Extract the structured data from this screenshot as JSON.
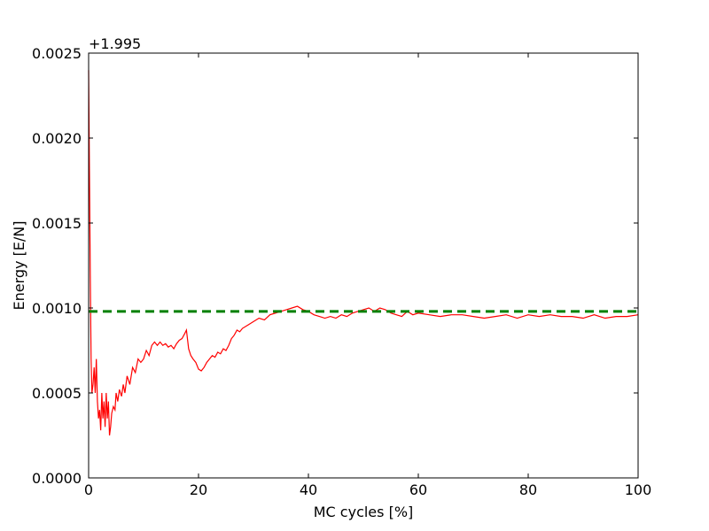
{
  "chart_data": {
    "type": "line",
    "title": "",
    "xlabel": "MC cycles [%]",
    "ylabel": "Energy [E/N]",
    "y_offset_text": "+1.995",
    "xlim": [
      0,
      100
    ],
    "ylim": [
      0,
      0.0025
    ],
    "grid": false,
    "x_ticks": [
      0,
      20,
      40,
      60,
      80,
      100
    ],
    "x_tick_labels": [
      "0",
      "20",
      "40",
      "60",
      "80",
      "100"
    ],
    "y_ticks": [
      0,
      0.0005,
      0.001,
      0.0015,
      0.002,
      0.0025
    ],
    "y_tick_labels": [
      "0.0000",
      "0.0005",
      "0.0010",
      "0.0015",
      "0.0020",
      "0.0025"
    ],
    "series": [
      {
        "color": "#ff0000",
        "style": "solid",
        "x": [
          0.0,
          0.15,
          0.3,
          0.45,
          0.6,
          0.8,
          1.0,
          1.2,
          1.4,
          1.6,
          1.8,
          2.0,
          2.2,
          2.4,
          2.6,
          2.8,
          3.0,
          3.2,
          3.4,
          3.6,
          3.8,
          4.0,
          4.2,
          4.5,
          4.8,
          5.0,
          5.3,
          5.6,
          6.0,
          6.3,
          6.6,
          7.0,
          7.5,
          8.0,
          8.5,
          9.0,
          9.5,
          10.0,
          10.5,
          11.0,
          11.5,
          12.0,
          12.5,
          13.0,
          13.5,
          14.0,
          14.5,
          15.0,
          15.5,
          16.0,
          16.5,
          17.0,
          17.5,
          17.8,
          18.2,
          18.6,
          19.0,
          19.5,
          20.0,
          20.5,
          21.0,
          21.5,
          22.0,
          22.5,
          23.0,
          23.5,
          24.0,
          24.5,
          25.0,
          25.5,
          26.0,
          26.5,
          27.0,
          27.5,
          28.0,
          29.0,
          30.0,
          31.0,
          32.0,
          33.0,
          34.0,
          35.0,
          36.0,
          37.0,
          38.0,
          39.0,
          40.0,
          41.0,
          42.0,
          43.0,
          44.0,
          45.0,
          46.0,
          47.0,
          48.0,
          49.0,
          50.0,
          51.0,
          52.0,
          53.0,
          54.0,
          55.0,
          56.0,
          57.0,
          58.0,
          59.0,
          60.0,
          62.0,
          64.0,
          66.0,
          68.0,
          70.0,
          72.0,
          74.0,
          76.0,
          78.0,
          80.0,
          82.0,
          84.0,
          86.0,
          88.0,
          90.0,
          92.0,
          94.0,
          96.0,
          98.0,
          100.0
        ],
        "y": [
          0.0024,
          0.0018,
          0.0012,
          0.0007,
          0.0005,
          0.00055,
          0.00065,
          0.0005,
          0.0007,
          0.00045,
          0.00035,
          0.0004,
          0.00028,
          0.0005,
          0.00035,
          0.00045,
          0.0003,
          0.0005,
          0.00035,
          0.00045,
          0.00025,
          0.0003,
          0.00038,
          0.00042,
          0.0004,
          0.0005,
          0.00045,
          0.00052,
          0.00048,
          0.00055,
          0.0005,
          0.0006,
          0.00055,
          0.00065,
          0.00062,
          0.0007,
          0.00068,
          0.0007,
          0.00075,
          0.00072,
          0.00078,
          0.0008,
          0.00078,
          0.0008,
          0.00078,
          0.00079,
          0.00077,
          0.00078,
          0.00076,
          0.00079,
          0.00081,
          0.00082,
          0.00085,
          0.00087,
          0.00076,
          0.00072,
          0.0007,
          0.00068,
          0.00064,
          0.00063,
          0.00065,
          0.00068,
          0.0007,
          0.00072,
          0.00071,
          0.00074,
          0.00073,
          0.00076,
          0.00075,
          0.00078,
          0.00082,
          0.00084,
          0.00087,
          0.00086,
          0.00088,
          0.0009,
          0.00092,
          0.00094,
          0.00093,
          0.00096,
          0.00097,
          0.00098,
          0.00099,
          0.001,
          0.00101,
          0.00099,
          0.00098,
          0.00096,
          0.00095,
          0.00094,
          0.00095,
          0.00094,
          0.00096,
          0.00095,
          0.00097,
          0.00098,
          0.00099,
          0.001,
          0.00098,
          0.001,
          0.00099,
          0.00097,
          0.00096,
          0.00095,
          0.00098,
          0.00096,
          0.00097,
          0.00096,
          0.00095,
          0.00096,
          0.00096,
          0.00095,
          0.00094,
          0.00095,
          0.00096,
          0.00094,
          0.00096,
          0.00095,
          0.00096,
          0.00095,
          0.00095,
          0.00094,
          0.00096,
          0.00094,
          0.00095,
          0.00095,
          0.00096
        ]
      },
      {
        "color": "#008000",
        "style": "dashed",
        "x": [
          0,
          100
        ],
        "y": [
          0.00098,
          0.00098
        ]
      }
    ]
  }
}
